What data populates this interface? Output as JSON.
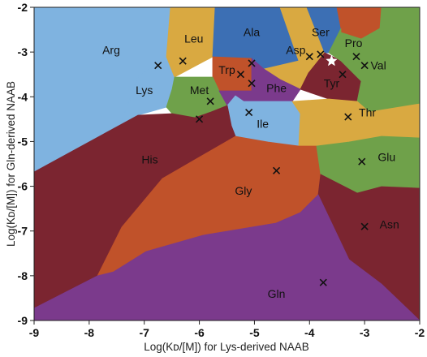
{
  "chart_data": {
    "type": "scatter",
    "subtype": "voronoi-region-map",
    "xlabel": "Log(Kᴅ/[M]) for Lys-derived NAAB",
    "ylabel": "Log(Kᴅ/[M]) for Gln-derived NAAB",
    "xlim": [
      -9,
      -2
    ],
    "ylim": [
      -9,
      -2
    ],
    "xticks": [
      "-9",
      "-8",
      "-7",
      "-6",
      "-5",
      "-4",
      "-3",
      "-2"
    ],
    "yticks": [
      "-2",
      "-3",
      "-4",
      "-5",
      "-6",
      "-7",
      "-8",
      "-9"
    ],
    "grid": false,
    "regions": [
      {
        "name": "Arg",
        "color": "#7FB3E0",
        "label_at": [
          -7.6,
          -2.95
        ],
        "point": null
      },
      {
        "name": "Lys",
        "color": "#7FB3E0",
        "label_at": [
          -7.0,
          -3.85
        ],
        "point": [
          -6.75,
          -3.3
        ]
      },
      {
        "name": "Leu",
        "color": "#D9A941",
        "label_at": [
          -6.1,
          -2.7
        ],
        "point": [
          -6.3,
          -3.2
        ]
      },
      {
        "name": "Ala",
        "color": "#3C6FB4",
        "label_at": [
          -5.05,
          -2.55
        ],
        "point": [
          -5.05,
          -3.25
        ]
      },
      {
        "name": "Asp",
        "color": "#D9A941",
        "label_at": [
          -4.25,
          -2.95
        ],
        "point": [
          -4.0,
          -3.1
        ]
      },
      {
        "name": "Ser",
        "color": "#3C6FB4",
        "label_at": [
          -3.8,
          -2.55
        ],
        "point": [
          -3.8,
          -3.05
        ]
      },
      {
        "name": "Pro",
        "color": "#C0522A",
        "label_at": [
          -3.2,
          -2.8
        ],
        "point": [
          -3.15,
          -3.1
        ]
      },
      {
        "name": "Trp",
        "color": "#C0522A",
        "label_at": [
          -5.5,
          -3.4
        ],
        "point": [
          -5.25,
          -3.5
        ]
      },
      {
        "name": "Met",
        "color": "#6FA14A",
        "label_at": [
          -6.0,
          -3.85
        ],
        "point": [
          -5.8,
          -4.1
        ]
      },
      {
        "name": "Phe",
        "color": "#7B3A8C",
        "label_at": [
          -4.6,
          -3.8
        ],
        "point": [
          -5.05,
          -3.7
        ]
      },
      {
        "name": "Tyr",
        "color": "#7B2530",
        "label_at": [
          -3.6,
          -3.7
        ],
        "point": [
          -3.4,
          -3.5
        ]
      },
      {
        "name": "Val",
        "color": "#6FA14A",
        "label_at": [
          -2.75,
          -3.3
        ],
        "point": [
          -3.0,
          -3.3
        ]
      },
      {
        "name": "Ile",
        "color": "#7FB3E0",
        "label_at": [
          -4.85,
          -4.6
        ],
        "point": [
          -5.1,
          -4.35
        ]
      },
      {
        "name": "Thr",
        "color": "#D9A941",
        "label_at": [
          -2.95,
          -4.35
        ],
        "point": [
          -3.3,
          -4.45
        ]
      },
      {
        "name": "His",
        "color": "#7B2530",
        "label_at": [
          -6.9,
          -5.4
        ],
        "point": [
          -6.0,
          -4.5
        ]
      },
      {
        "name": "Gly",
        "color": "#C0522A",
        "label_at": [
          -5.2,
          -6.1
        ],
        "point": [
          -4.6,
          -5.65
        ]
      },
      {
        "name": "Glu",
        "color": "#6FA14A",
        "label_at": [
          -2.6,
          -5.35
        ],
        "point": [
          -3.05,
          -5.45
        ]
      },
      {
        "name": "Asn",
        "color": "#7B2530",
        "label_at": [
          -2.55,
          -6.85
        ],
        "point": [
          -3.0,
          -6.9
        ]
      },
      {
        "name": "Gln",
        "color": "#7B3A8C",
        "label_at": [
          -4.6,
          -8.4
        ],
        "point": [
          -3.75,
          -8.15
        ]
      }
    ],
    "star_point": {
      "x": -3.6,
      "y": -3.2,
      "color": "#ffffff"
    }
  }
}
